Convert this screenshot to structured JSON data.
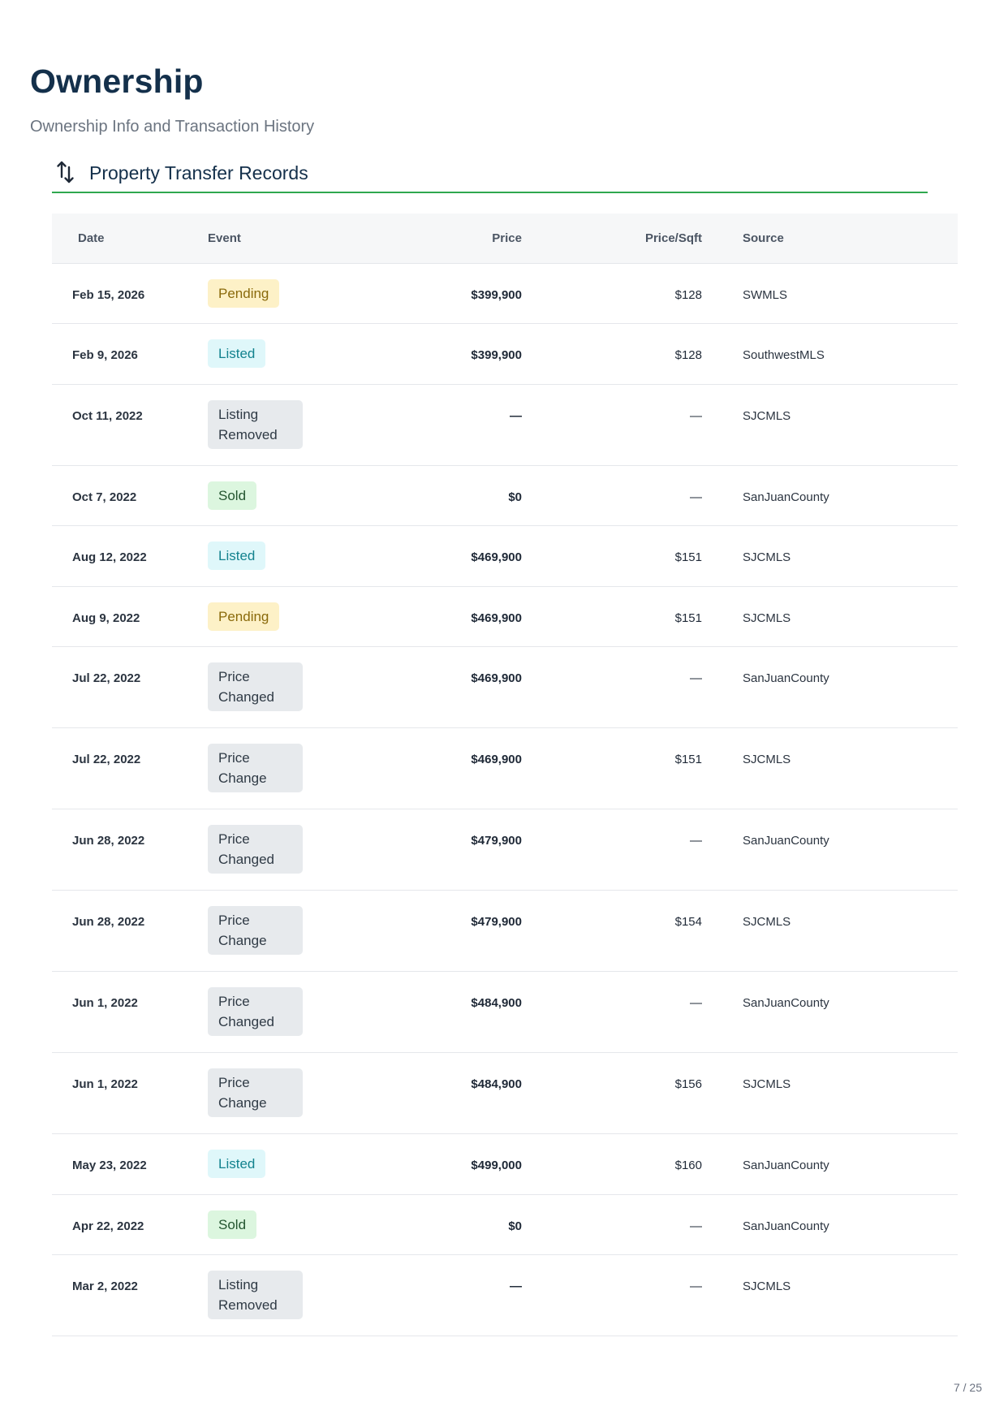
{
  "page": {
    "title": "Ownership",
    "subtitle": "Ownership Info and Transaction History",
    "page_number": "7 / 25"
  },
  "section": {
    "title": "Property Transfer Records",
    "icon": "transfer-arrows-icon"
  },
  "table": {
    "headers": {
      "date": "Date",
      "event": "Event",
      "price": "Price",
      "price_sqft": "Price/Sqft",
      "source": "Source"
    },
    "rows": [
      {
        "date": "Feb 15, 2026",
        "event": "Pending",
        "event_type": "pending",
        "price": "$399,900",
        "price_sqft": "$128",
        "source": "SWMLS"
      },
      {
        "date": "Feb 9, 2026",
        "event": "Listed",
        "event_type": "listed",
        "price": "$399,900",
        "price_sqft": "$128",
        "source": "SouthwestMLS"
      },
      {
        "date": "Oct 11, 2022",
        "event": "Listing Removed",
        "event_type": "neutral",
        "price": "—",
        "price_sqft": "—",
        "source": "SJCMLS"
      },
      {
        "date": "Oct 7, 2022",
        "event": "Sold",
        "event_type": "sold",
        "price": "$0",
        "price_sqft": "—",
        "source": "SanJuanCounty"
      },
      {
        "date": "Aug 12, 2022",
        "event": "Listed",
        "event_type": "listed",
        "price": "$469,900",
        "price_sqft": "$151",
        "source": "SJCMLS"
      },
      {
        "date": "Aug 9, 2022",
        "event": "Pending",
        "event_type": "pending",
        "price": "$469,900",
        "price_sqft": "$151",
        "source": "SJCMLS"
      },
      {
        "date": "Jul 22, 2022",
        "event": "Price Changed",
        "event_type": "neutral",
        "price": "$469,900",
        "price_sqft": "—",
        "source": "SanJuanCounty"
      },
      {
        "date": "Jul 22, 2022",
        "event": "Price Change",
        "event_type": "neutral",
        "price": "$469,900",
        "price_sqft": "$151",
        "source": "SJCMLS"
      },
      {
        "date": "Jun 28, 2022",
        "event": "Price Changed",
        "event_type": "neutral",
        "price": "$479,900",
        "price_sqft": "—",
        "source": "SanJuanCounty"
      },
      {
        "date": "Jun 28, 2022",
        "event": "Price Change",
        "event_type": "neutral",
        "price": "$479,900",
        "price_sqft": "$154",
        "source": "SJCMLS"
      },
      {
        "date": "Jun 1, 2022",
        "event": "Price Changed",
        "event_type": "neutral",
        "price": "$484,900",
        "price_sqft": "—",
        "source": "SanJuanCounty"
      },
      {
        "date": "Jun 1, 2022",
        "event": "Price Change",
        "event_type": "neutral",
        "price": "$484,900",
        "price_sqft": "$156",
        "source": "SJCMLS"
      },
      {
        "date": "May 23, 2022",
        "event": "Listed",
        "event_type": "listed",
        "price": "$499,000",
        "price_sqft": "$160",
        "source": "SanJuanCounty"
      },
      {
        "date": "Apr 22, 2022",
        "event": "Sold",
        "event_type": "sold",
        "price": "$0",
        "price_sqft": "—",
        "source": "SanJuanCounty"
      },
      {
        "date": "Mar 2, 2022",
        "event": "Listing Removed",
        "event_type": "neutral",
        "price": "—",
        "price_sqft": "—",
        "source": "SJCMLS"
      }
    ]
  },
  "colors": {
    "title": "#14304b",
    "accent_rule": "#2fa84f",
    "pending_bg": "#fdf1c7",
    "listed_bg": "#dff7fa",
    "sold_bg": "#dcf6df",
    "neutral_bg": "#e7eaed"
  }
}
